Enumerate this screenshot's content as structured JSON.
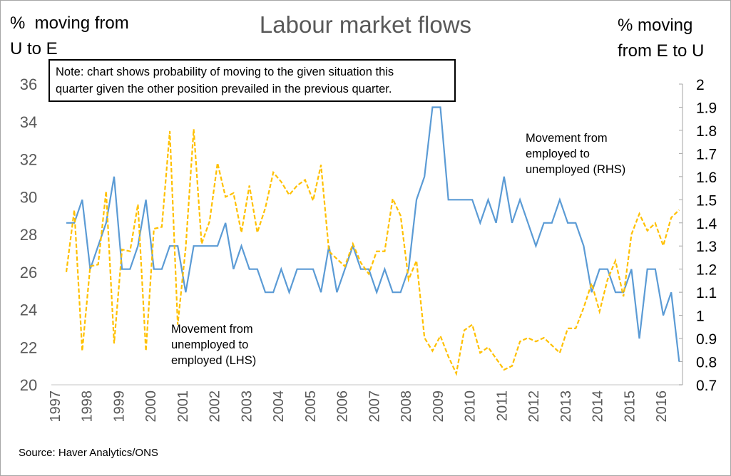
{
  "chart_data": {
    "type": "line",
    "title": "Labour market flows",
    "ylabel_left": [
      "%  moving from",
      "U to E"
    ],
    "ylabel_right": [
      "% moving",
      "from E to U"
    ],
    "note": [
      "Note: chart shows probability of moving to the given situation this",
      "quarter given the other position prevailed in the previous quarter."
    ],
    "source": "Source: Haver Analytics/ONS",
    "ylim_left": [
      20,
      36
    ],
    "yticks_left": [
      "20",
      "22",
      "24",
      "26",
      "28",
      "30",
      "32",
      "34",
      "36"
    ],
    "ylim_right": [
      0.7,
      2
    ],
    "yticks_right": [
      "0.7",
      "0.8",
      "0.9",
      "1",
      "1.1",
      "1.2",
      "1.3",
      "1.4",
      "1.5",
      "1.6",
      "1.7",
      "1.8",
      "1.9",
      "2"
    ],
    "xticks": [
      "1997",
      "1998",
      "1999",
      "2000",
      "2001",
      "2002",
      "2003",
      "2004",
      "2005",
      "2006",
      "2007",
      "2008",
      "2009",
      "2010",
      "2011",
      "2012",
      "2013",
      "2014",
      "2015",
      "2016"
    ],
    "x_start": 1997.5,
    "x_step": 0.25,
    "series": [
      {
        "name": "Movement from employed to unemployed (RHS)",
        "label": [
          "Movement from",
          "employed to",
          "unemployed (RHS)"
        ],
        "axis": "right",
        "color": "#5B9BD5",
        "style": "solid",
        "values": [
          1.4,
          1.4,
          1.5,
          1.2,
          1.3,
          1.4,
          1.6,
          1.2,
          1.2,
          1.3,
          1.5,
          1.2,
          1.2,
          1.3,
          1.3,
          1.1,
          1.3,
          1.3,
          1.3,
          1.3,
          1.4,
          1.2,
          1.3,
          1.2,
          1.2,
          1.1,
          1.1,
          1.2,
          1.1,
          1.2,
          1.2,
          1.2,
          1.1,
          1.3,
          1.1,
          1.2,
          1.3,
          1.2,
          1.2,
          1.1,
          1.2,
          1.1,
          1.1,
          1.2,
          1.5,
          1.6,
          1.9,
          1.9,
          1.5,
          1.5,
          1.5,
          1.5,
          1.4,
          1.5,
          1.4,
          1.6,
          1.4,
          1.5,
          1.4,
          1.3,
          1.4,
          1.4,
          1.5,
          1.4,
          1.4,
          1.3,
          1.1,
          1.2,
          1.2,
          1.1,
          1.1,
          1.2,
          0.9,
          1.2,
          1.2,
          1.0,
          1.1,
          0.8
        ]
      },
      {
        "name": "Movement from unemployed to employed (LHS)",
        "label": [
          "Movement from",
          "unemployed to",
          "employed (LHS)"
        ],
        "axis": "left",
        "color": "#FFC000",
        "style": "dashed",
        "values": [
          26,
          29.3,
          21.8,
          26.3,
          26.4,
          30.3,
          22.2,
          27.2,
          27.1,
          29.6,
          21.8,
          28.3,
          28.4,
          33.5,
          23.2,
          27.3,
          33.6,
          27.5,
          28.7,
          31.8,
          30,
          30.2,
          28.1,
          30.6,
          28.1,
          29.4,
          31.3,
          30.8,
          30.1,
          30.6,
          30.9,
          29.8,
          31.7,
          27.1,
          26.7,
          26.3,
          27.5,
          26.5,
          25.9,
          27.1,
          27.1,
          29.9,
          29,
          25.6,
          26.6,
          22.5,
          21.8,
          22.6,
          21.5,
          20.6,
          22.9,
          23.2,
          21.7,
          22,
          21.4,
          20.8,
          21,
          22.3,
          22.5,
          22.3,
          22.5,
          22.1,
          21.7,
          23,
          23,
          24.1,
          25.4,
          23.9,
          25.6,
          26.6,
          24.7,
          28,
          29.1,
          28.2,
          28.6,
          27.4,
          28.9,
          29.3
        ]
      }
    ]
  }
}
